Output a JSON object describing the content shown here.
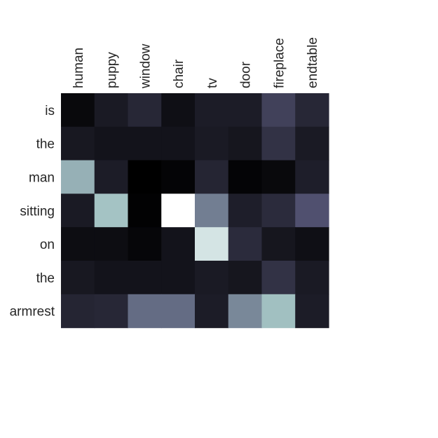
{
  "chart_data": {
    "type": "heatmap",
    "title": "",
    "xlabel": "",
    "ylabel": "",
    "colormap": "bone",
    "x_categories": [
      "human",
      "puppy",
      "window",
      "chair",
      "tv",
      "door",
      "fireplace",
      "endtable"
    ],
    "y_categories": [
      "is",
      "the",
      "man",
      "sitting",
      "on",
      "the",
      "armrest"
    ],
    "values": [
      [
        0.04,
        0.12,
        0.18,
        0.07,
        0.13,
        0.13,
        0.3,
        0.18
      ],
      [
        0.11,
        0.09,
        0.09,
        0.09,
        0.12,
        0.1,
        0.23,
        0.12
      ],
      [
        0.68,
        0.13,
        0.0,
        0.02,
        0.17,
        0.02,
        0.04,
        0.14
      ],
      [
        0.12,
        0.74,
        0.01,
        1.0,
        0.52,
        0.14,
        0.2,
        0.37
      ],
      [
        0.06,
        0.06,
        0.03,
        0.09,
        0.88,
        0.2,
        0.1,
        0.07
      ],
      [
        0.11,
        0.09,
        0.09,
        0.09,
        0.12,
        0.1,
        0.23,
        0.12
      ],
      [
        0.17,
        0.18,
        0.46,
        0.46,
        0.13,
        0.55,
        0.73,
        0.13
      ]
    ],
    "vrange": [
      0,
      1
    ],
    "grid": false,
    "legend": "none"
  }
}
